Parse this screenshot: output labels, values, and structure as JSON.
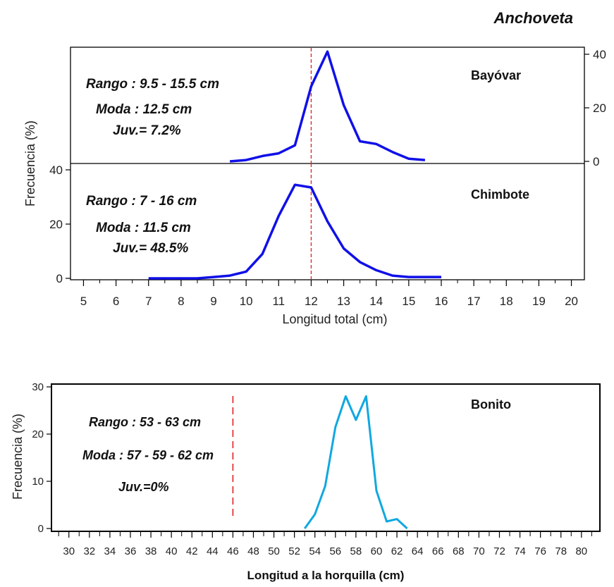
{
  "title": "Anchoveta",
  "colors": {
    "anchoveta_line": "#1010e8",
    "bonito_line": "#10a8e0",
    "reference_line": "#e02020"
  },
  "chart_data": [
    {
      "type": "line",
      "panel": "Bayóvar",
      "station_label": "Bayóvar",
      "annotations": [
        "Rango : 9.5 - 15.5 cm",
        "Moda : 12.5 cm",
        "Juv.= 7.2%"
      ],
      "x": [
        9.5,
        10,
        10.5,
        11,
        11.5,
        12,
        12.5,
        13,
        13.5,
        14,
        14.5,
        15,
        15.5
      ],
      "series": [
        {
          "values": [
            0,
            0.5,
            2,
            3,
            6,
            28,
            41,
            21,
            7.5,
            6.5,
            3.5,
            1,
            0.5
          ]
        }
      ],
      "yticks": [
        0,
        20,
        40
      ],
      "ylim": [
        0,
        42
      ],
      "y_axis_side": "right",
      "reference_x": 12
    },
    {
      "type": "line",
      "panel": "Chimbote",
      "station_label": "Chimbote",
      "annotations": [
        "Rango : 7 - 16 cm",
        "Moda : 11.5 cm",
        "Juv.= 48.5%"
      ],
      "x": [
        7,
        7.5,
        8,
        8.5,
        9,
        9.5,
        10,
        10.5,
        11,
        11.5,
        12,
        12.5,
        13,
        13.5,
        14,
        14.5,
        15,
        15.5,
        16
      ],
      "series": [
        {
          "values": [
            0,
            0,
            0,
            0,
            0.5,
            1,
            2.5,
            9,
            23,
            34.5,
            33.5,
            21,
            11,
            6,
            3,
            1,
            0.5,
            0.5,
            0.5
          ]
        }
      ],
      "xticks": [
        5,
        6,
        7,
        8,
        9,
        10,
        11,
        12,
        13,
        14,
        15,
        16,
        17,
        18,
        19,
        20
      ],
      "yticks": [
        0,
        20,
        40
      ],
      "ylim": [
        0,
        42
      ],
      "xlim": [
        4.6,
        20.4
      ],
      "xlabel": "Longitud total (cm)",
      "ylabel": "Frecuencia (%)",
      "reference_x": 12
    },
    {
      "type": "line",
      "panel": "Bonito",
      "station_label": "Bonito",
      "annotations": [
        "Rango : 53 - 63 cm",
        "Moda : 57 - 59 - 62 cm",
        "Juv.=0%"
      ],
      "x": [
        53,
        54,
        55,
        56,
        57,
        58,
        59,
        60,
        61,
        62,
        63
      ],
      "series": [
        {
          "values": [
            0,
            3,
            9,
            21.5,
            28,
            23,
            28,
            8,
            1.5,
            2,
            0
          ]
        }
      ],
      "xticks": [
        30,
        32,
        34,
        36,
        38,
        40,
        42,
        44,
        46,
        48,
        50,
        52,
        54,
        56,
        58,
        60,
        62,
        64,
        66,
        68,
        70,
        72,
        74,
        76,
        78,
        80
      ],
      "yticks": [
        0,
        10,
        20,
        30
      ],
      "ylim": [
        0,
        31
      ],
      "xlim": [
        28.3,
        81.8
      ],
      "xlabel": "Longitud a la horquilla (cm)",
      "ylabel": "Frecuencia (%)",
      "reference_x": 46
    }
  ]
}
